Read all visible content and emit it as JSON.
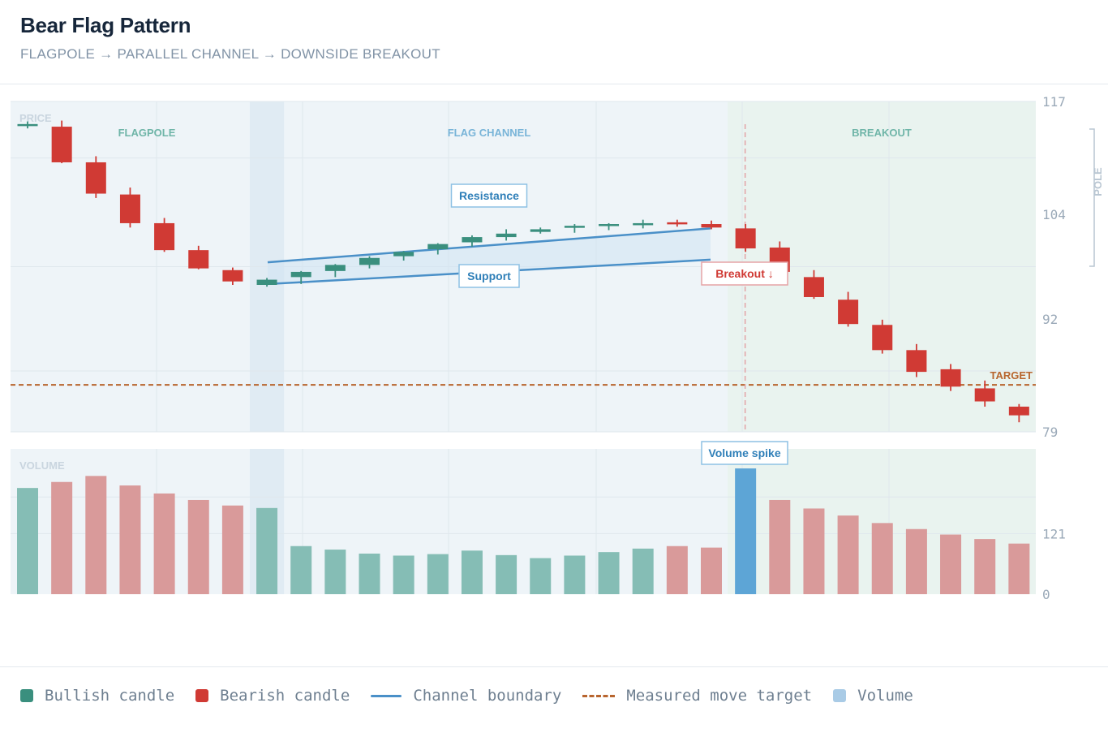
{
  "header": {
    "title": "Bear Flag Pattern",
    "subtitle": "FLAGPOLE → PARALLEL CHANNEL → DOWNSIDE BREAKOUT"
  },
  "colors": {
    "bullish": "#3a8f7e",
    "bearish": "#d03a34",
    "channel": "#4a90c8",
    "target": "#b8652e",
    "volume_spike": "#5da5d6",
    "price_bg": "#eef4f8",
    "breakout_bg": "#e9f3ef"
  },
  "chart_data": [
    {
      "type": "candlestick",
      "ylabel": "PRICE",
      "ylim": [
        79,
        117
      ],
      "yticks": [
        117,
        104,
        92,
        79
      ],
      "grid": true,
      "regions": [
        {
          "label": "FLAGPOLE",
          "start": 0,
          "end": 6
        },
        {
          "label": "FLAG CHANNEL",
          "start": 7,
          "end": 20
        },
        {
          "label": "BREAKOUT",
          "start": 21,
          "end": 29
        }
      ],
      "candles": [
        {
          "o": 114.4,
          "h": 114.7,
          "l": 113.9,
          "c": 114.4,
          "dir": "bull"
        },
        {
          "o": 114.1,
          "h": 114.8,
          "l": 109.9,
          "c": 110.0,
          "dir": "bear"
        },
        {
          "o": 110.0,
          "h": 110.7,
          "l": 105.9,
          "c": 106.4,
          "dir": "bear"
        },
        {
          "o": 106.3,
          "h": 107.1,
          "l": 102.5,
          "c": 103.0,
          "dir": "bear"
        },
        {
          "o": 103.0,
          "h": 103.6,
          "l": 99.7,
          "c": 99.9,
          "dir": "bear"
        },
        {
          "o": 99.9,
          "h": 100.4,
          "l": 97.7,
          "c": 97.8,
          "dir": "bear"
        },
        {
          "o": 97.6,
          "h": 97.9,
          "l": 95.9,
          "c": 96.3,
          "dir": "bear"
        },
        {
          "o": 95.9,
          "h": 96.7,
          "l": 95.7,
          "c": 96.5,
          "dir": "bull"
        },
        {
          "o": 96.8,
          "h": 97.5,
          "l": 96.0,
          "c": 97.4,
          "dir": "bull"
        },
        {
          "o": 97.5,
          "h": 98.3,
          "l": 96.8,
          "c": 98.2,
          "dir": "bull"
        },
        {
          "o": 98.2,
          "h": 99.2,
          "l": 97.8,
          "c": 99.0,
          "dir": "bull"
        },
        {
          "o": 99.2,
          "h": 99.8,
          "l": 98.7,
          "c": 99.7,
          "dir": "bull"
        },
        {
          "o": 100.0,
          "h": 100.7,
          "l": 99.4,
          "c": 100.6,
          "dir": "bull"
        },
        {
          "o": 100.8,
          "h": 101.6,
          "l": 100.3,
          "c": 101.4,
          "dir": "bull"
        },
        {
          "o": 101.4,
          "h": 102.3,
          "l": 101.0,
          "c": 101.8,
          "dir": "bull"
        },
        {
          "o": 102.0,
          "h": 102.5,
          "l": 101.8,
          "c": 102.3,
          "dir": "bull"
        },
        {
          "o": 102.5,
          "h": 102.9,
          "l": 101.9,
          "c": 102.7,
          "dir": "bull"
        },
        {
          "o": 102.8,
          "h": 103.0,
          "l": 102.2,
          "c": 102.9,
          "dir": "bull"
        },
        {
          "o": 102.9,
          "h": 103.4,
          "l": 102.4,
          "c": 103.0,
          "dir": "bull"
        },
        {
          "o": 103.1,
          "h": 103.4,
          "l": 102.6,
          "c": 102.9,
          "dir": "bear"
        },
        {
          "o": 102.9,
          "h": 103.3,
          "l": 102.3,
          "c": 102.5,
          "dir": "bear"
        },
        {
          "o": 102.4,
          "h": 102.9,
          "l": 99.7,
          "c": 100.1,
          "dir": "bear"
        },
        {
          "o": 100.2,
          "h": 100.9,
          "l": 96.8,
          "c": 97.4,
          "dir": "bear"
        },
        {
          "o": 96.8,
          "h": 97.6,
          "l": 94.3,
          "c": 94.5,
          "dir": "bear"
        },
        {
          "o": 94.2,
          "h": 95.1,
          "l": 91.1,
          "c": 91.4,
          "dir": "bear"
        },
        {
          "o": 91.3,
          "h": 91.9,
          "l": 88.0,
          "c": 88.4,
          "dir": "bear"
        },
        {
          "o": 88.4,
          "h": 89.1,
          "l": 85.3,
          "c": 85.9,
          "dir": "bear"
        },
        {
          "o": 86.2,
          "h": 86.8,
          "l": 83.7,
          "c": 84.2,
          "dir": "bear"
        },
        {
          "o": 84.0,
          "h": 84.9,
          "l": 81.9,
          "c": 82.5,
          "dir": "bear"
        },
        {
          "o": 81.9,
          "h": 82.2,
          "l": 80.1,
          "c": 80.9,
          "dir": "bear"
        }
      ],
      "channel": {
        "resistance": {
          "x": [
            7,
            20
          ],
          "y": [
            98.5,
            102.4
          ]
        },
        "support": {
          "x": [
            7,
            20
          ],
          "y": [
            96.0,
            98.8
          ]
        },
        "resistance_label": "Resistance",
        "support_label": "Support"
      },
      "target": {
        "y": 84.4,
        "label": "TARGET"
      },
      "breakout": {
        "index": 21,
        "label": "Breakout ↓"
      },
      "pole_label": "POLE"
    },
    {
      "type": "bar",
      "ylabel": "VOLUME",
      "ylim": [
        0,
        290
      ],
      "yticks": [
        121,
        0
      ],
      "values": [
        212,
        224,
        236,
        217,
        201,
        188,
        177,
        172,
        96,
        89,
        81,
        77,
        80,
        87,
        78,
        72,
        77,
        84,
        91,
        96,
        93,
        251,
        188,
        171,
        157,
        142,
        130,
        119,
        110,
        101
      ],
      "direction": [
        "bull",
        "bear",
        "bear",
        "bear",
        "bear",
        "bear",
        "bear",
        "bull",
        "bull",
        "bull",
        "bull",
        "bull",
        "bull",
        "bull",
        "bull",
        "bull",
        "bull",
        "bull",
        "bull",
        "bear",
        "bear",
        "spike",
        "bear",
        "bear",
        "bear",
        "bear",
        "bear",
        "bear",
        "bear",
        "bear"
      ],
      "spike": {
        "index": 21,
        "label": "Volume spike"
      }
    }
  ],
  "legend": {
    "items": [
      {
        "label": "Bullish candle",
        "kind": "square",
        "color": "#3a8f7e"
      },
      {
        "label": "Bearish candle",
        "kind": "square",
        "color": "#d03a34"
      },
      {
        "label": "Channel boundary",
        "kind": "line",
        "color": "#4a90c8"
      },
      {
        "label": "Measured move target",
        "kind": "dash",
        "color": "#b8652e"
      },
      {
        "label": "Volume",
        "kind": "square",
        "color": "#a9cbe6"
      }
    ]
  }
}
